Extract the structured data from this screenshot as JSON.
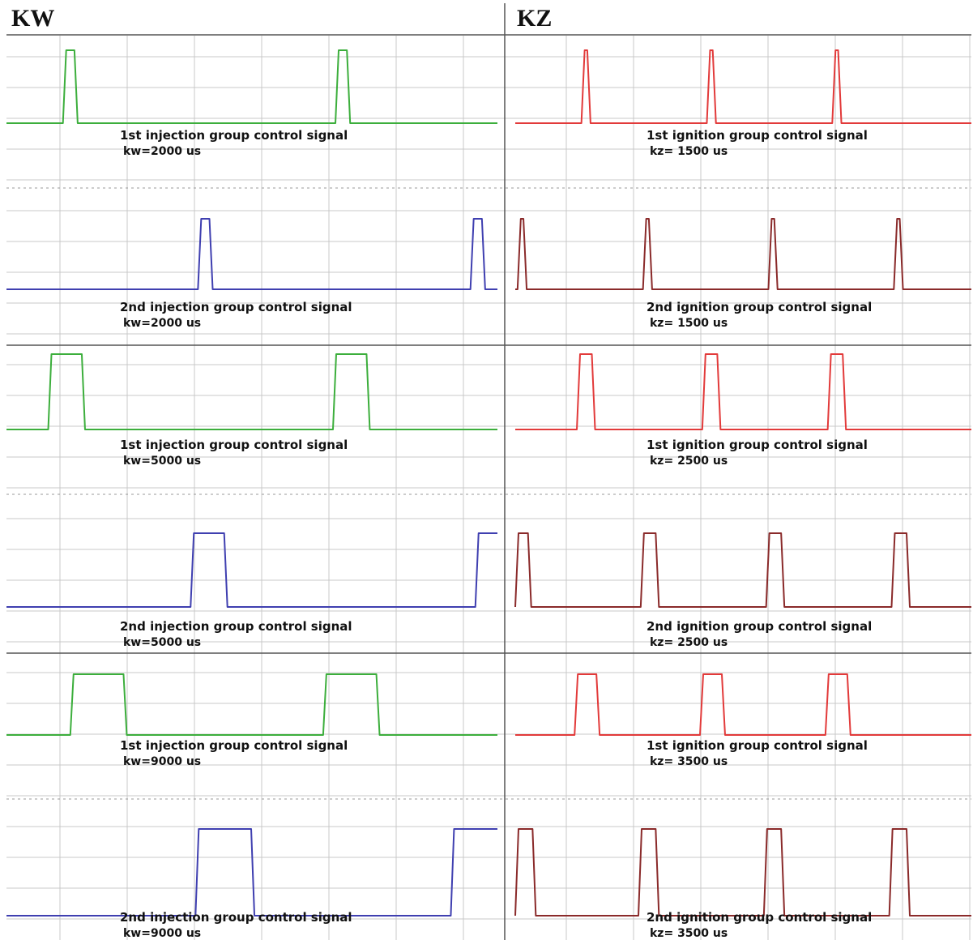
{
  "columns": [
    {
      "heading": "KW"
    },
    {
      "heading": "KZ"
    }
  ],
  "colors": {
    "injection_1": "#3cae3c",
    "injection_2": "#3f3fb0",
    "ignition_1": "#e23a3a",
    "ignition_2": "#8a2a2a",
    "grid": "#c8c8c8",
    "divider": "#555555"
  },
  "chart_data": [
    {
      "type": "line",
      "column": 0,
      "row": 0,
      "label": "1st injection group control signal",
      "value_text": "kw=2000 us",
      "color": "#3cae3c",
      "high_intervals": [
        [
          0.115,
          0.145
        ],
        [
          0.67,
          0.7
        ]
      ],
      "x_range": [
        0,
        1
      ],
      "y_levels": [
        0,
        1
      ]
    },
    {
      "type": "line",
      "column": 0,
      "row": 1,
      "label": "2nd injection  group control signal",
      "value_text": "kw=2000 us",
      "color": "#3f3fb0",
      "high_intervals": [
        [
          0.39,
          0.42
        ],
        [
          0.945,
          0.975
        ]
      ],
      "x_range": [
        0,
        1
      ],
      "y_levels": [
        0,
        1
      ]
    },
    {
      "type": "line",
      "column": 0,
      "row": 2,
      "label": "1st injection group control signal",
      "value_text": "kw=5000 us",
      "color": "#3cae3c",
      "high_intervals": [
        [
          0.085,
          0.16
        ],
        [
          0.665,
          0.74
        ]
      ],
      "x_range": [
        0,
        1
      ],
      "y_levels": [
        0,
        1
      ]
    },
    {
      "type": "line",
      "column": 0,
      "row": 3,
      "label": "2nd injection group control signal",
      "value_text": "kw=5000 us",
      "color": "#3f3fb0",
      "high_intervals": [
        [
          0.375,
          0.45
        ],
        [
          0.955,
          1.0
        ]
      ],
      "x_range": [
        0,
        1
      ],
      "y_levels": [
        0,
        1
      ]
    },
    {
      "type": "line",
      "column": 0,
      "row": 4,
      "label": "1st injection group control signal",
      "value_text": "kw=9000 us",
      "color": "#3cae3c",
      "high_intervals": [
        [
          0.13,
          0.245
        ],
        [
          0.645,
          0.76
        ]
      ],
      "x_range": [
        0,
        1
      ],
      "y_levels": [
        0,
        1
      ]
    },
    {
      "type": "line",
      "column": 0,
      "row": 5,
      "label": "2nd injection group control signal",
      "value_text": "kw=9000 us",
      "color": "#3f3fb0",
      "high_intervals": [
        [
          0.385,
          0.505
        ],
        [
          0.905,
          1.0
        ]
      ],
      "x_range": [
        0,
        1
      ],
      "y_levels": [
        0,
        1
      ]
    },
    {
      "type": "line",
      "column": 1,
      "row": 0,
      "label": "1st ignition group control signal",
      "value_text": "kz= 1500 us",
      "color": "#e23a3a",
      "high_intervals": [
        [
          0.145,
          0.165
        ],
        [
          0.42,
          0.44
        ],
        [
          0.695,
          0.715
        ]
      ],
      "x_range": [
        0,
        1
      ],
      "y_levels": [
        0,
        1
      ]
    },
    {
      "type": "line",
      "column": 1,
      "row": 1,
      "label": "2nd ignition group control signal",
      "value_text": "kz= 1500 us",
      "color": "#8a2a2a",
      "high_intervals": [
        [
          0.005,
          0.025
        ],
        [
          0.28,
          0.3
        ],
        [
          0.555,
          0.575
        ],
        [
          0.83,
          0.85
        ]
      ],
      "x_range": [
        0,
        1
      ],
      "y_levels": [
        0,
        1
      ]
    },
    {
      "type": "line",
      "column": 1,
      "row": 2,
      "label": "1st ignition group control signal",
      "value_text": "kz= 2500 us",
      "color": "#e23a3a",
      "high_intervals": [
        [
          0.135,
          0.175
        ],
        [
          0.41,
          0.45
        ],
        [
          0.685,
          0.725
        ]
      ],
      "x_range": [
        0,
        1
      ],
      "y_levels": [
        0,
        1
      ]
    },
    {
      "type": "line",
      "column": 1,
      "row": 3,
      "label": "2nd ignition group control signal",
      "value_text": "kz= 2500 us",
      "color": "#8a2a2a",
      "high_intervals": [
        [
          0.0,
          0.035
        ],
        [
          0.275,
          0.315
        ],
        [
          0.55,
          0.59
        ],
        [
          0.825,
          0.865
        ]
      ],
      "x_range": [
        0,
        1
      ],
      "y_levels": [
        0,
        1
      ]
    },
    {
      "type": "line",
      "column": 1,
      "row": 4,
      "label": "1st ignition group control signal",
      "value_text": "kz= 3500 us",
      "color": "#e23a3a",
      "high_intervals": [
        [
          0.13,
          0.185
        ],
        [
          0.405,
          0.46
        ],
        [
          0.68,
          0.735
        ]
      ],
      "x_range": [
        0,
        1
      ],
      "y_levels": [
        0,
        1
      ]
    },
    {
      "type": "line",
      "column": 1,
      "row": 5,
      "label": "2nd ignition group control signal",
      "value_text": "kz= 3500 us",
      "color": "#8a2a2a",
      "high_intervals": [
        [
          0.0,
          0.045
        ],
        [
          0.27,
          0.315
        ],
        [
          0.545,
          0.59
        ],
        [
          0.82,
          0.865
        ]
      ],
      "x_range": [
        0,
        1
      ],
      "y_levels": [
        0,
        1
      ]
    }
  ]
}
